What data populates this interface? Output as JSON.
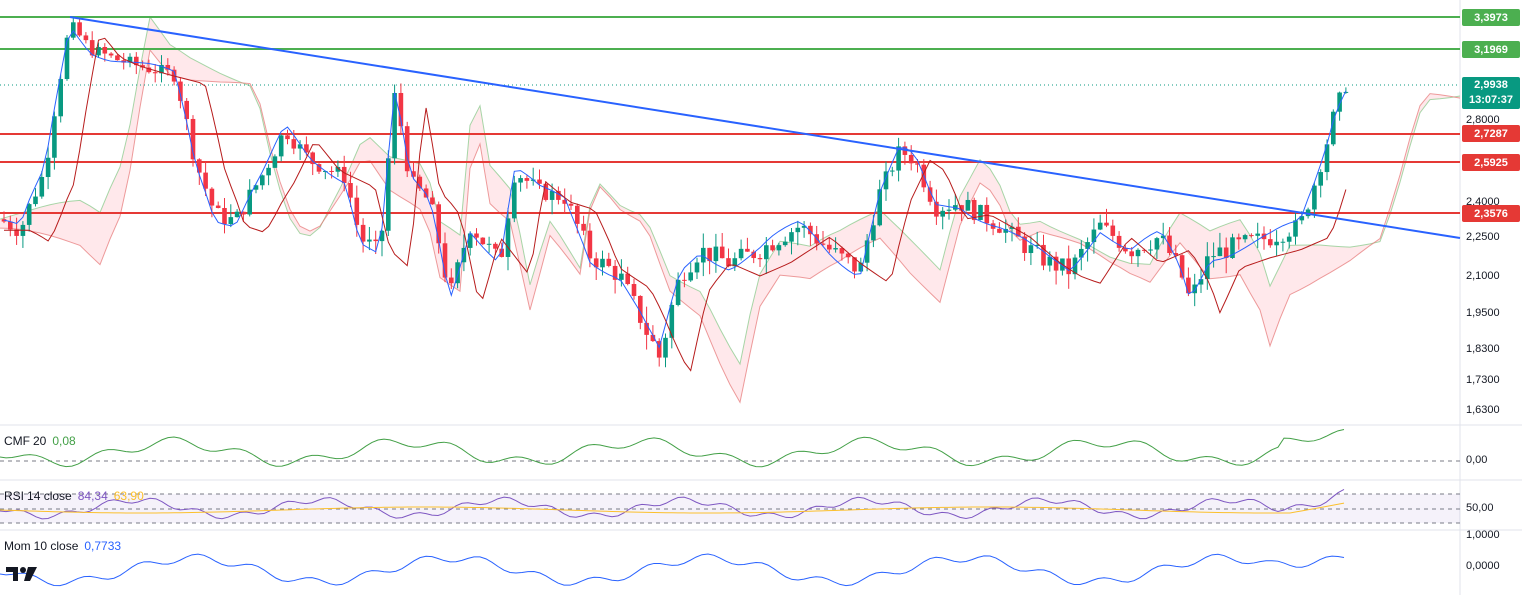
{
  "price_axis": {
    "ticks": [
      "2,8000",
      "2,4000",
      "2,2500",
      "2,1000",
      "1,9500",
      "1,8300",
      "1,7300",
      "1,6300"
    ],
    "levels": [
      {
        "label": "3,3973",
        "color": "#4caf50",
        "kind": "resistance"
      },
      {
        "label": "3,1969",
        "color": "#4caf50",
        "kind": "resistance"
      },
      {
        "label": "2,7287",
        "color": "#e53935",
        "kind": "support"
      },
      {
        "label": "2,5925",
        "color": "#e53935",
        "kind": "support"
      },
      {
        "label": "2,3576",
        "color": "#e53935",
        "kind": "support"
      }
    ],
    "current_price": "2,9938",
    "countdown": "13:07:37",
    "current_color": "#089981"
  },
  "indicators": {
    "cmf": {
      "name": "CMF",
      "params": "20",
      "value": "0,08",
      "zero_label": "0,00",
      "color": "#43a047"
    },
    "rsi": {
      "name": "RSI",
      "params": "14 close",
      "value": "84,34",
      "ma_value": "63,90",
      "mid_label": "50,00",
      "color": "#7e57c2",
      "ma_color": "#fbc02d"
    },
    "mom": {
      "name": "Mom",
      "params": "10 close",
      "value": "0,7733",
      "label_top": "1,0000",
      "label_zero": "0,0000",
      "color": "#2962ff"
    }
  },
  "colors": {
    "bull": "#089981",
    "bear": "#f23645",
    "trendline": "#2962ff",
    "cloud_bull": "#c8e6c9",
    "cloud_bear": "#ffcdd2",
    "tenkan": "#2962ff",
    "kijun": "#b71c1c"
  },
  "logo_icon": "tradingview-logo-icon"
}
